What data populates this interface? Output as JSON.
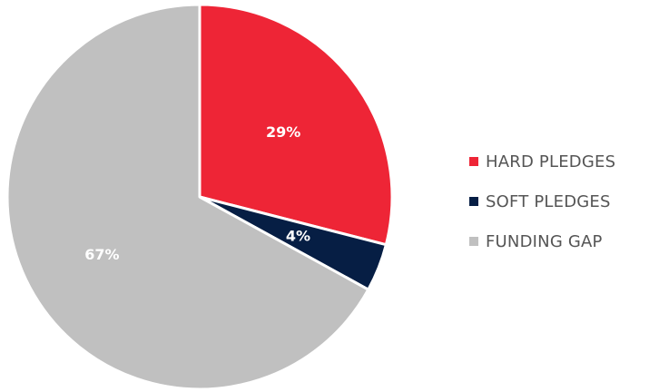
{
  "chart_data": {
    "type": "pie",
    "title": "",
    "categories": [
      "HARD PLEDGES",
      "SOFT PLEDGES",
      "FUNDING GAP"
    ],
    "values": [
      29,
      4,
      67
    ],
    "labels": [
      "29%",
      "4%",
      "67%"
    ],
    "colors": [
      "#ee2536",
      "#061e44",
      "#c0c0c0"
    ],
    "start_angle": "12 o'clock",
    "direction": "clockwise",
    "legend": {
      "placement": "right",
      "entries": [
        "HARD PLEDGES",
        "SOFT PLEDGES",
        "FUNDING GAP"
      ]
    }
  }
}
